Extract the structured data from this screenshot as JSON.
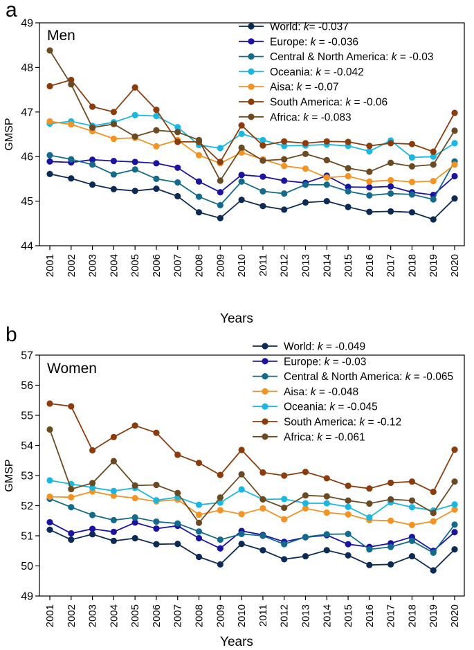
{
  "chart_data": [
    {
      "type": "line",
      "panel_label": "a",
      "title": "Men",
      "xlabel": "Years",
      "ylabel": "GMSP",
      "ylim": [
        44,
        49
      ],
      "yticks": [
        44,
        45,
        46,
        47,
        48,
        49
      ],
      "grid": false,
      "legend_position": "top-right",
      "categories": [
        "2001",
        "2002",
        "2003",
        "2004",
        "2005",
        "2006",
        "2007",
        "2008",
        "2009",
        "2010",
        "2011",
        "2012",
        "2013",
        "2014",
        "2015",
        "2016",
        "2017",
        "2018",
        "2019",
        "2020"
      ],
      "series": [
        {
          "name": "World",
          "k_label": "k",
          "k_sep": "= ",
          "k_value": "-0.037",
          "color": "#0d2a55",
          "values": [
            45.61,
            45.51,
            45.37,
            45.27,
            45.23,
            45.28,
            45.11,
            44.75,
            44.62,
            45.03,
            44.89,
            44.81,
            44.97,
            45.0,
            44.87,
            44.76,
            44.77,
            44.75,
            44.59,
            45.06
          ]
        },
        {
          "name": "Europe",
          "k_label": "k",
          "k_sep": " = ",
          "k_value": "-0.036",
          "color": "#1a14a0",
          "values": [
            45.89,
            45.87,
            45.93,
            45.9,
            45.88,
            45.85,
            45.75,
            45.44,
            45.2,
            45.59,
            45.55,
            45.46,
            45.41,
            45.57,
            45.32,
            45.31,
            45.33,
            45.2,
            45.14,
            45.56
          ]
        },
        {
          "name": "Central & North America",
          "k_label": "k",
          "k_sep": " = ",
          "k_value": "-0.03",
          "color": "#136a8a",
          "values": [
            46.03,
            45.94,
            45.82,
            45.6,
            45.71,
            45.5,
            45.42,
            45.1,
            44.91,
            45.44,
            45.22,
            45.17,
            45.37,
            45.37,
            45.22,
            45.13,
            45.17,
            45.15,
            45.04,
            45.89
          ]
        },
        {
          "name": "Oceania",
          "k_label": "k",
          "k_sep": " = ",
          "k_value": "-0.042",
          "color": "#1ab8e0",
          "values": [
            46.74,
            46.79,
            46.69,
            46.77,
            46.93,
            46.91,
            46.66,
            46.26,
            46.19,
            46.51,
            46.37,
            46.24,
            46.25,
            46.27,
            46.24,
            46.12,
            46.36,
            45.98,
            46.0,
            46.3
          ]
        },
        {
          "name": "Aisa",
          "k_label": "k",
          "k_sep": " = ",
          "k_value": "-0.07",
          "color": "#f39323",
          "values": [
            46.79,
            46.72,
            46.57,
            46.4,
            46.42,
            46.23,
            46.37,
            46.03,
            45.85,
            46.09,
            45.94,
            45.79,
            45.73,
            45.53,
            45.56,
            45.44,
            45.47,
            45.43,
            45.45,
            45.82
          ]
        },
        {
          "name": "South America",
          "k_label": "k",
          "k_sep": " = ",
          "k_value": "-0.06",
          "color": "#8b3c0c",
          "values": [
            47.58,
            47.72,
            47.12,
            47.0,
            47.55,
            47.05,
            46.33,
            46.33,
            45.88,
            46.7,
            46.25,
            46.34,
            46.3,
            46.34,
            46.33,
            46.24,
            46.3,
            46.28,
            46.11,
            46.98
          ]
        },
        {
          "name": "Africa",
          "k_label": "k",
          "k_sep": " = ",
          "k_value": "-0.083",
          "color": "#6a4a22",
          "values": [
            48.38,
            47.62,
            46.65,
            46.73,
            46.45,
            46.59,
            46.55,
            46.37,
            45.46,
            46.2,
            45.91,
            45.94,
            46.06,
            45.92,
            45.74,
            45.66,
            45.86,
            45.78,
            45.82,
            46.58
          ]
        }
      ]
    },
    {
      "type": "line",
      "panel_label": "b",
      "title": "Women",
      "xlabel": "Years",
      "ylabel": "GMSP",
      "ylim": [
        49,
        57
      ],
      "yticks": [
        49,
        50,
        51,
        52,
        53,
        54,
        55,
        56,
        57
      ],
      "grid": false,
      "legend_position": "top-right",
      "categories": [
        "2001",
        "2002",
        "2003",
        "2004",
        "2005",
        "2006",
        "2007",
        "2008",
        "2009",
        "2010",
        "2011",
        "2012",
        "2013",
        "2014",
        "2015",
        "2016",
        "2017",
        "2018",
        "2019",
        "2020"
      ],
      "series": [
        {
          "name": "World",
          "k_label": "k",
          "k_sep": " = ",
          "k_value": "-0.049",
          "color": "#0d2a55",
          "values": [
            51.2,
            50.87,
            51.05,
            50.83,
            50.92,
            50.72,
            50.73,
            50.3,
            50.05,
            50.73,
            50.52,
            50.22,
            50.32,
            50.52,
            50.35,
            50.03,
            50.05,
            50.32,
            49.85,
            50.55
          ]
        },
        {
          "name": "Europe",
          "k_label": "k",
          "k_sep": " = ",
          "k_value": "-0.03",
          "color": "#1a14a0",
          "values": [
            51.45,
            51.08,
            51.23,
            51.13,
            51.44,
            51.24,
            51.33,
            50.92,
            50.58,
            51.16,
            51.03,
            50.8,
            50.95,
            51.02,
            50.72,
            50.63,
            50.75,
            50.96,
            50.5,
            51.12
          ]
        },
        {
          "name": "Central & North America",
          "k_label": "k",
          "k_sep": " = ",
          "k_value": "-0.065",
          "color": "#136a8a",
          "values": [
            52.23,
            51.95,
            51.69,
            51.52,
            51.61,
            51.47,
            51.41,
            51.14,
            50.87,
            51.06,
            51.0,
            50.72,
            50.96,
            51.05,
            51.06,
            50.55,
            50.63,
            50.83,
            50.44,
            51.37
          ]
        },
        {
          "name": "Aisa",
          "k_label": "k",
          "k_sep": " = ",
          "k_value": "-0.048",
          "color": "#f39323",
          "values": [
            52.3,
            52.28,
            52.47,
            52.33,
            52.25,
            52.14,
            52.2,
            51.7,
            51.85,
            51.72,
            51.91,
            51.55,
            51.91,
            51.77,
            51.71,
            51.52,
            51.5,
            51.36,
            51.48,
            51.87
          ]
        },
        {
          "name": "Oceania",
          "k_label": "k",
          "k_sep": " = ",
          "k_value": "-0.045",
          "color": "#1ab8e0",
          "values": [
            52.84,
            52.72,
            52.6,
            52.49,
            52.59,
            52.18,
            52.28,
            52.03,
            52.1,
            52.54,
            52.21,
            52.22,
            52.08,
            52.08,
            51.96,
            51.61,
            52.11,
            51.95,
            51.84,
            52.04
          ]
        },
        {
          "name": "South America",
          "k_label": "k",
          "k_sep": " = ",
          "k_value": "-0.12",
          "color": "#8b3c0c",
          "values": [
            55.39,
            55.3,
            53.84,
            54.28,
            54.66,
            54.42,
            53.69,
            53.42,
            53.02,
            53.85,
            53.1,
            53.0,
            53.12,
            52.91,
            52.66,
            52.57,
            52.76,
            52.8,
            52.46,
            53.86
          ]
        },
        {
          "name": "Africa",
          "k_label": "k",
          "k_sep": " = ",
          "k_value": "-0.061",
          "color": "#6a4a22",
          "values": [
            54.53,
            52.55,
            52.75,
            53.48,
            52.67,
            52.69,
            52.42,
            51.43,
            52.27,
            53.04,
            52.21,
            51.93,
            52.34,
            52.31,
            52.17,
            52.07,
            52.21,
            52.17,
            51.76,
            52.8
          ]
        }
      ]
    }
  ]
}
